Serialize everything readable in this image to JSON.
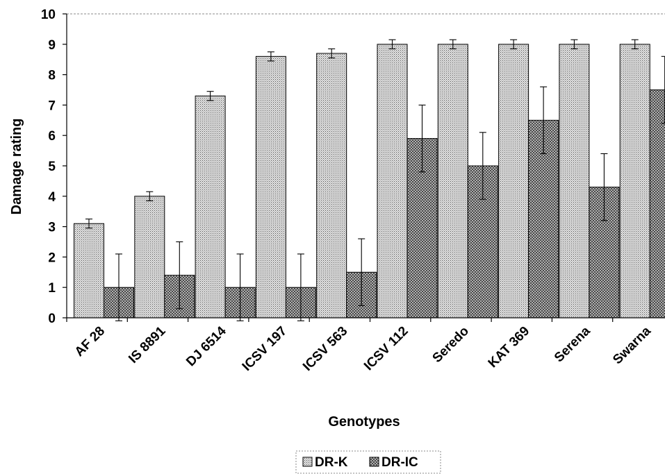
{
  "chart_data": {
    "type": "bar",
    "title": "",
    "xlabel": "Genotypes",
    "ylabel": "Damage rating",
    "ylim": [
      0,
      10
    ],
    "yticks": [
      0,
      1,
      2,
      3,
      4,
      5,
      6,
      7,
      8,
      9,
      10
    ],
    "grid": false,
    "legend_position": "bottom",
    "categories": [
      "AF 28",
      "IS 8891",
      "DJ 6514",
      "ICSV 197",
      "ICSV 563",
      "ICSV 112",
      "Seredo",
      "KAT 369",
      "Serena",
      "Swarna"
    ],
    "series": [
      {
        "name": "DR-K",
        "values": [
          3.1,
          4.0,
          7.3,
          8.6,
          8.7,
          9.0,
          9.0,
          9.0,
          9.0,
          9.0
        ],
        "error": [
          0.15,
          0.15,
          0.15,
          0.15,
          0.15,
          0.15,
          0.15,
          0.15,
          0.15,
          0.15
        ],
        "pattern": "fine-dots",
        "color": "#bdbdbd"
      },
      {
        "name": "DR-IC",
        "values": [
          1.0,
          1.4,
          1.0,
          1.0,
          1.5,
          5.9,
          5.0,
          6.5,
          4.3,
          7.5
        ],
        "error": [
          1.1,
          1.1,
          1.1,
          1.1,
          1.1,
          1.1,
          1.1,
          1.1,
          1.1,
          1.1
        ],
        "pattern": "crosshatch",
        "color": "#9e9e9e"
      }
    ]
  }
}
